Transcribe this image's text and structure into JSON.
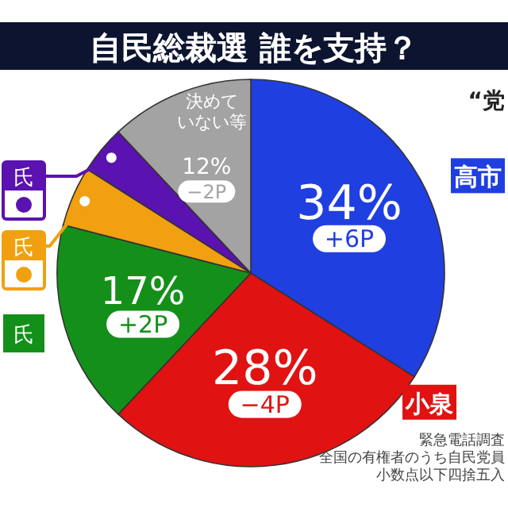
{
  "chart_data": {
    "type": "pie",
    "title": "自民総裁選  誰を支持？",
    "categories": [
      "高市",
      "小泉",
      "氏",
      "氏",
      "氏",
      "決めていない等"
    ],
    "values": [
      34,
      28,
      17,
      5,
      4,
      12
    ],
    "colors": [
      "#1f3fe0",
      "#e01212",
      "#14901a",
      "#f0a010",
      "#5a12b0",
      "#a3a3a3"
    ],
    "value_labels": [
      "34%\n+6P",
      "28%\n−4P",
      "17%\n+2P",
      null,
      null,
      "12%\n−2P"
    ],
    "annotations": [
      "“党",
      "緊急電話調査",
      "全国の有権者のうち自民党員",
      "小数点以下四捨五入"
    ]
  }
}
